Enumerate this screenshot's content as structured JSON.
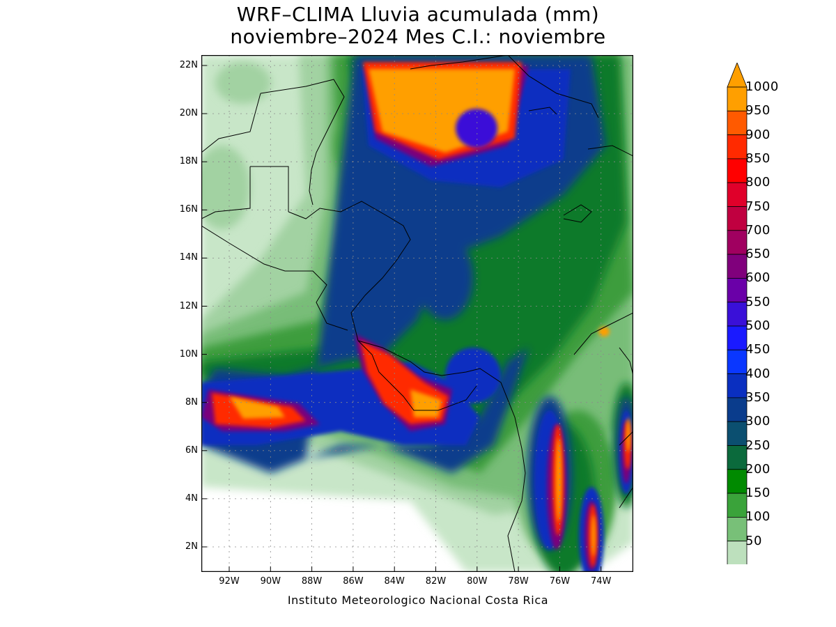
{
  "title": {
    "line1": "WRF–CLIMA Lluvia acumulada (mm)",
    "line2": "noviembre–2024 Mes C.I.: noviembre"
  },
  "credit": "Instituto Meteorologico Nacional Costa Rica",
  "axes": {
    "lat_ticks": [
      "22N",
      "20N",
      "18N",
      "16N",
      "14N",
      "12N",
      "10N",
      "8N",
      "6N",
      "4N",
      "2N"
    ],
    "lon_ticks": [
      "92W",
      "90W",
      "88W",
      "86W",
      "84W",
      "82W",
      "80W",
      "78W",
      "76W",
      "74W"
    ]
  },
  "colorbar": {
    "levels": [
      "1000",
      "950",
      "900",
      "850",
      "800",
      "750",
      "700",
      "650",
      "600",
      "550",
      "500",
      "450",
      "400",
      "350",
      "300",
      "250",
      "200",
      "150",
      "100",
      "50"
    ],
    "colors": [
      "#ff9f00",
      "#ff5a00",
      "#ff2a00",
      "#ff0000",
      "#e0002a",
      "#c00040",
      "#a00060",
      "#80007c",
      "#6a00a8",
      "#3a10d8",
      "#1a1aff",
      "#0a37ff",
      "#0a2fc0",
      "#0a3c8c",
      "#0b4f70",
      "#0b6a3c",
      "#008a00",
      "#3aa33a",
      "#78c078",
      "#bde0bd"
    ],
    "max_arrow_color": "#ff9f00"
  },
  "map_colors": {
    "c50": "#c8e6c8",
    "c100": "#a2d2a2",
    "c150": "#78bd78",
    "c200": "#3d9d3d",
    "c250": "#0b7a2a",
    "c300": "#0b4f70",
    "c350": "#0a3c8c",
    "c400": "#0a2fc0",
    "c450": "#1a1aff",
    "c550": "#3a10d8",
    "c650": "#7a007c",
    "c800": "#e0002a",
    "c900": "#ff2a00",
    "c950": "#ff5a00",
    "c1000": "#ff9f00"
  }
}
